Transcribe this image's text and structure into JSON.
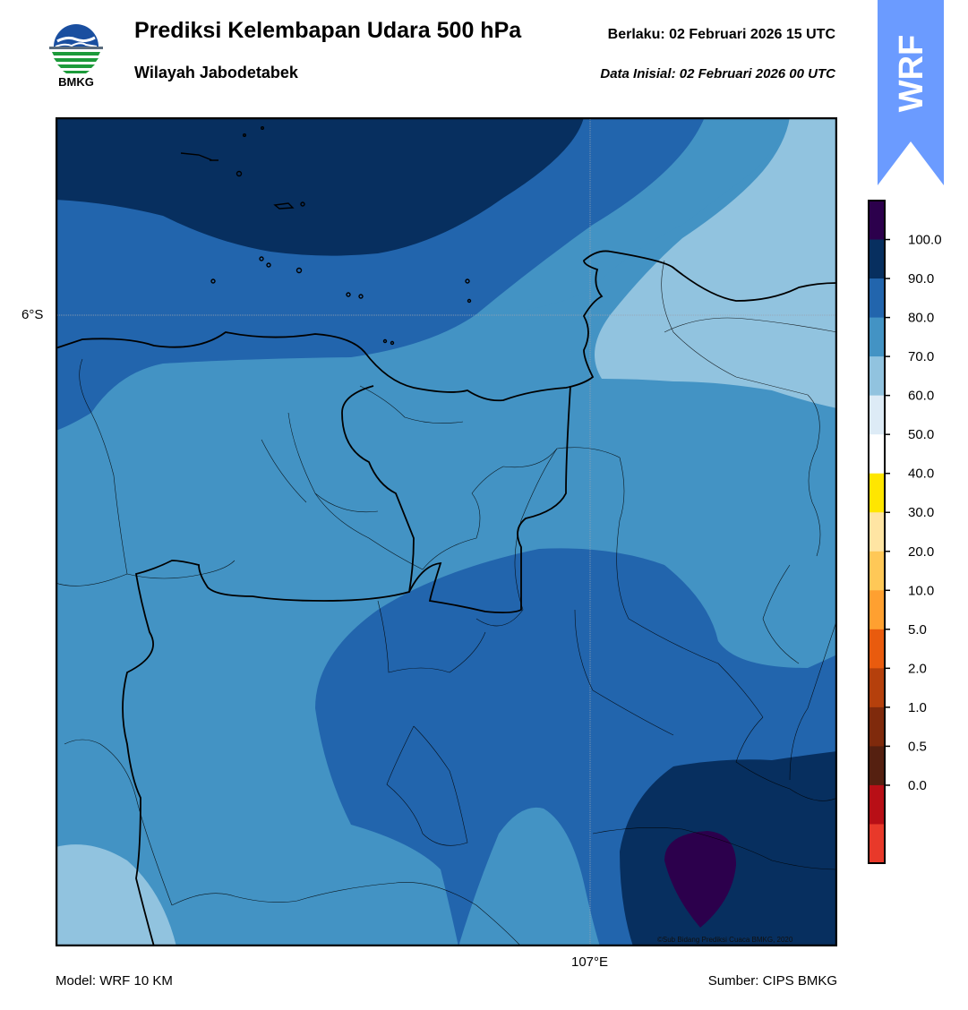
{
  "header": {
    "title": "Prediksi Kelembapan Udara 500 hPa",
    "region": "Wilayah Jabodetabek",
    "valid_time": "Berlaku:  02 Februari 2026 15 UTC",
    "init_time": "Data Inisial:  02 Februari 2026 00 UTC"
  },
  "logo": {
    "text": "BMKG",
    "icon": "bmkg-logo-icon"
  },
  "badge": {
    "text": "WRF",
    "icon": "wrf-arrow-badge-icon",
    "color": "#6b9bff"
  },
  "map": {
    "lat_label": "6°S",
    "lon_label": "107°E",
    "copyright": "©Sub Bidang Prediksi Cuaca BMKG, 2020",
    "colors": {
      "band_60_70": "#91c3df",
      "band_70_80": "#4393c4",
      "band_80_90": "#2265ad",
      "band_90_100": "#072f5f",
      "band_100_plus": "#2c004c"
    }
  },
  "colorbar": {
    "labels": [
      "100.0",
      "90.0",
      "80.0",
      "70.0",
      "60.0",
      "50.0",
      "40.0",
      "30.0",
      "20.0",
      "10.0",
      "5.0",
      "2.0",
      "1.0",
      "0.5",
      "0.0"
    ],
    "colors": [
      "#2c004c",
      "#072f5f",
      "#2265ad",
      "#4393c4",
      "#91c3df",
      "#ddebf6",
      "#ffffff",
      "#ffe600",
      "#ffe5a3",
      "#ffc857",
      "#ffa030",
      "#e95b0e",
      "#b5400c",
      "#7f2a0c",
      "#552010",
      "#b80f16",
      "#e8392a"
    ]
  },
  "footer": {
    "model": "Model: WRF 10 KM",
    "source": "Sumber: CIPS BMKG"
  }
}
